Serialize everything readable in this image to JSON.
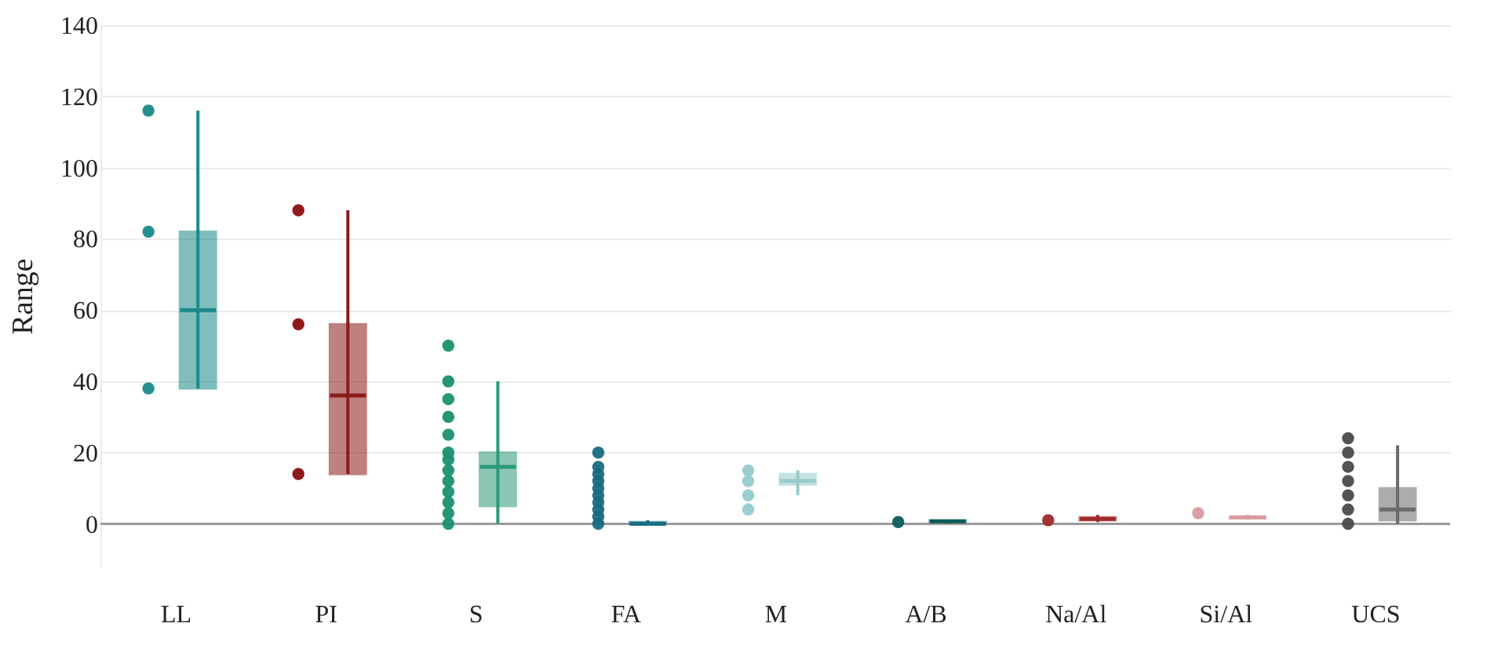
{
  "chart_data": {
    "type": "box",
    "ylabel": "Range",
    "categories": [
      "LL",
      "PI",
      "S",
      "FA",
      "M",
      "A/B",
      "Na/Al",
      "Si/Al",
      "UCS"
    ],
    "ylim": [
      -12,
      140
    ],
    "yticks": [
      0,
      20,
      40,
      60,
      80,
      100,
      120,
      140
    ],
    "grid": "y",
    "ref_lines": [
      {
        "axis": "y",
        "value": 0,
        "color": "#777777"
      }
    ],
    "series": [
      {
        "type": "box",
        "colors": [
          "#1a8a8a",
          "#8b1a1a",
          "#2a9a78",
          "#1a6e84",
          "#96cccc",
          "#0c5c5c",
          "#a02a2a",
          "#d89aa0",
          "#6a6a6a"
        ],
        "boxes": [
          {
            "low": 38,
            "q1": 38,
            "median": 60,
            "q3": 82,
            "high": 116
          },
          {
            "low": 14,
            "q1": 14,
            "median": 36,
            "q3": 56,
            "high": 88
          },
          {
            "low": 0,
            "q1": 5,
            "median": 16,
            "q3": 20,
            "high": 40
          },
          {
            "low": 0,
            "q1": 0,
            "median": 0,
            "q3": 0.5,
            "high": 1
          },
          {
            "low": 8,
            "q1": 11,
            "median": 12,
            "q3": 14,
            "high": 15
          },
          {
            "low": 0.2,
            "q1": 0.6,
            "median": 0.7,
            "q3": 0.9,
            "high": 1.2
          },
          {
            "low": 0.5,
            "q1": 1,
            "median": 1.4,
            "q3": 1.8,
            "high": 2.5
          },
          {
            "low": 1.2,
            "q1": 1.5,
            "median": 1.8,
            "q3": 2,
            "high": 2.5
          },
          {
            "low": 0,
            "q1": 1,
            "median": 4,
            "q3": 10,
            "high": 22
          }
        ]
      },
      {
        "type": "scatter",
        "color": "#1a8a8a",
        "x": [
          "LL",
          "LL",
          "LL"
        ],
        "values": [
          38,
          82,
          116
        ]
      },
      {
        "type": "scatter",
        "color": "#8b0e0e",
        "x": [
          "PI",
          "PI",
          "PI"
        ],
        "values": [
          14,
          56,
          88
        ]
      },
      {
        "type": "scatter",
        "color": "#1a9070",
        "x": [
          "S",
          "S",
          "S",
          "S",
          "S",
          "S",
          "S",
          "S",
          "S",
          "S",
          "S",
          "S",
          "S"
        ],
        "values": [
          0,
          3,
          6,
          9,
          12,
          15,
          18,
          20,
          25,
          30,
          35,
          40,
          50
        ]
      },
      {
        "type": "scatter",
        "color": "#1a6a80",
        "x": [
          "FA",
          "FA",
          "FA",
          "FA",
          "FA",
          "FA",
          "FA",
          "FA",
          "FA",
          "FA"
        ],
        "values": [
          0,
          2,
          4,
          6,
          8,
          10,
          12,
          14,
          16,
          20
        ]
      },
      {
        "type": "scatter",
        "color": "#96cccc",
        "x": [
          "M",
          "M",
          "M",
          "M"
        ],
        "values": [
          4,
          8,
          12,
          15
        ]
      },
      {
        "type": "scatter",
        "color": "#0c5c5c",
        "x": [
          "A/B"
        ],
        "values": [
          0.5
        ]
      },
      {
        "type": "scatter",
        "color": "#a02828",
        "x": [
          "Na/Al"
        ],
        "values": [
          1
        ]
      },
      {
        "type": "scatter",
        "color": "#d89aa0",
        "x": [
          "Si/Al"
        ],
        "values": [
          3
        ]
      },
      {
        "type": "scatter",
        "color": "#4a4a4a",
        "x": [
          "UCS",
          "UCS",
          "UCS",
          "UCS",
          "UCS",
          "UCS",
          "UCS"
        ],
        "values": [
          0,
          4,
          8,
          12,
          16,
          20,
          24
        ]
      }
    ]
  }
}
